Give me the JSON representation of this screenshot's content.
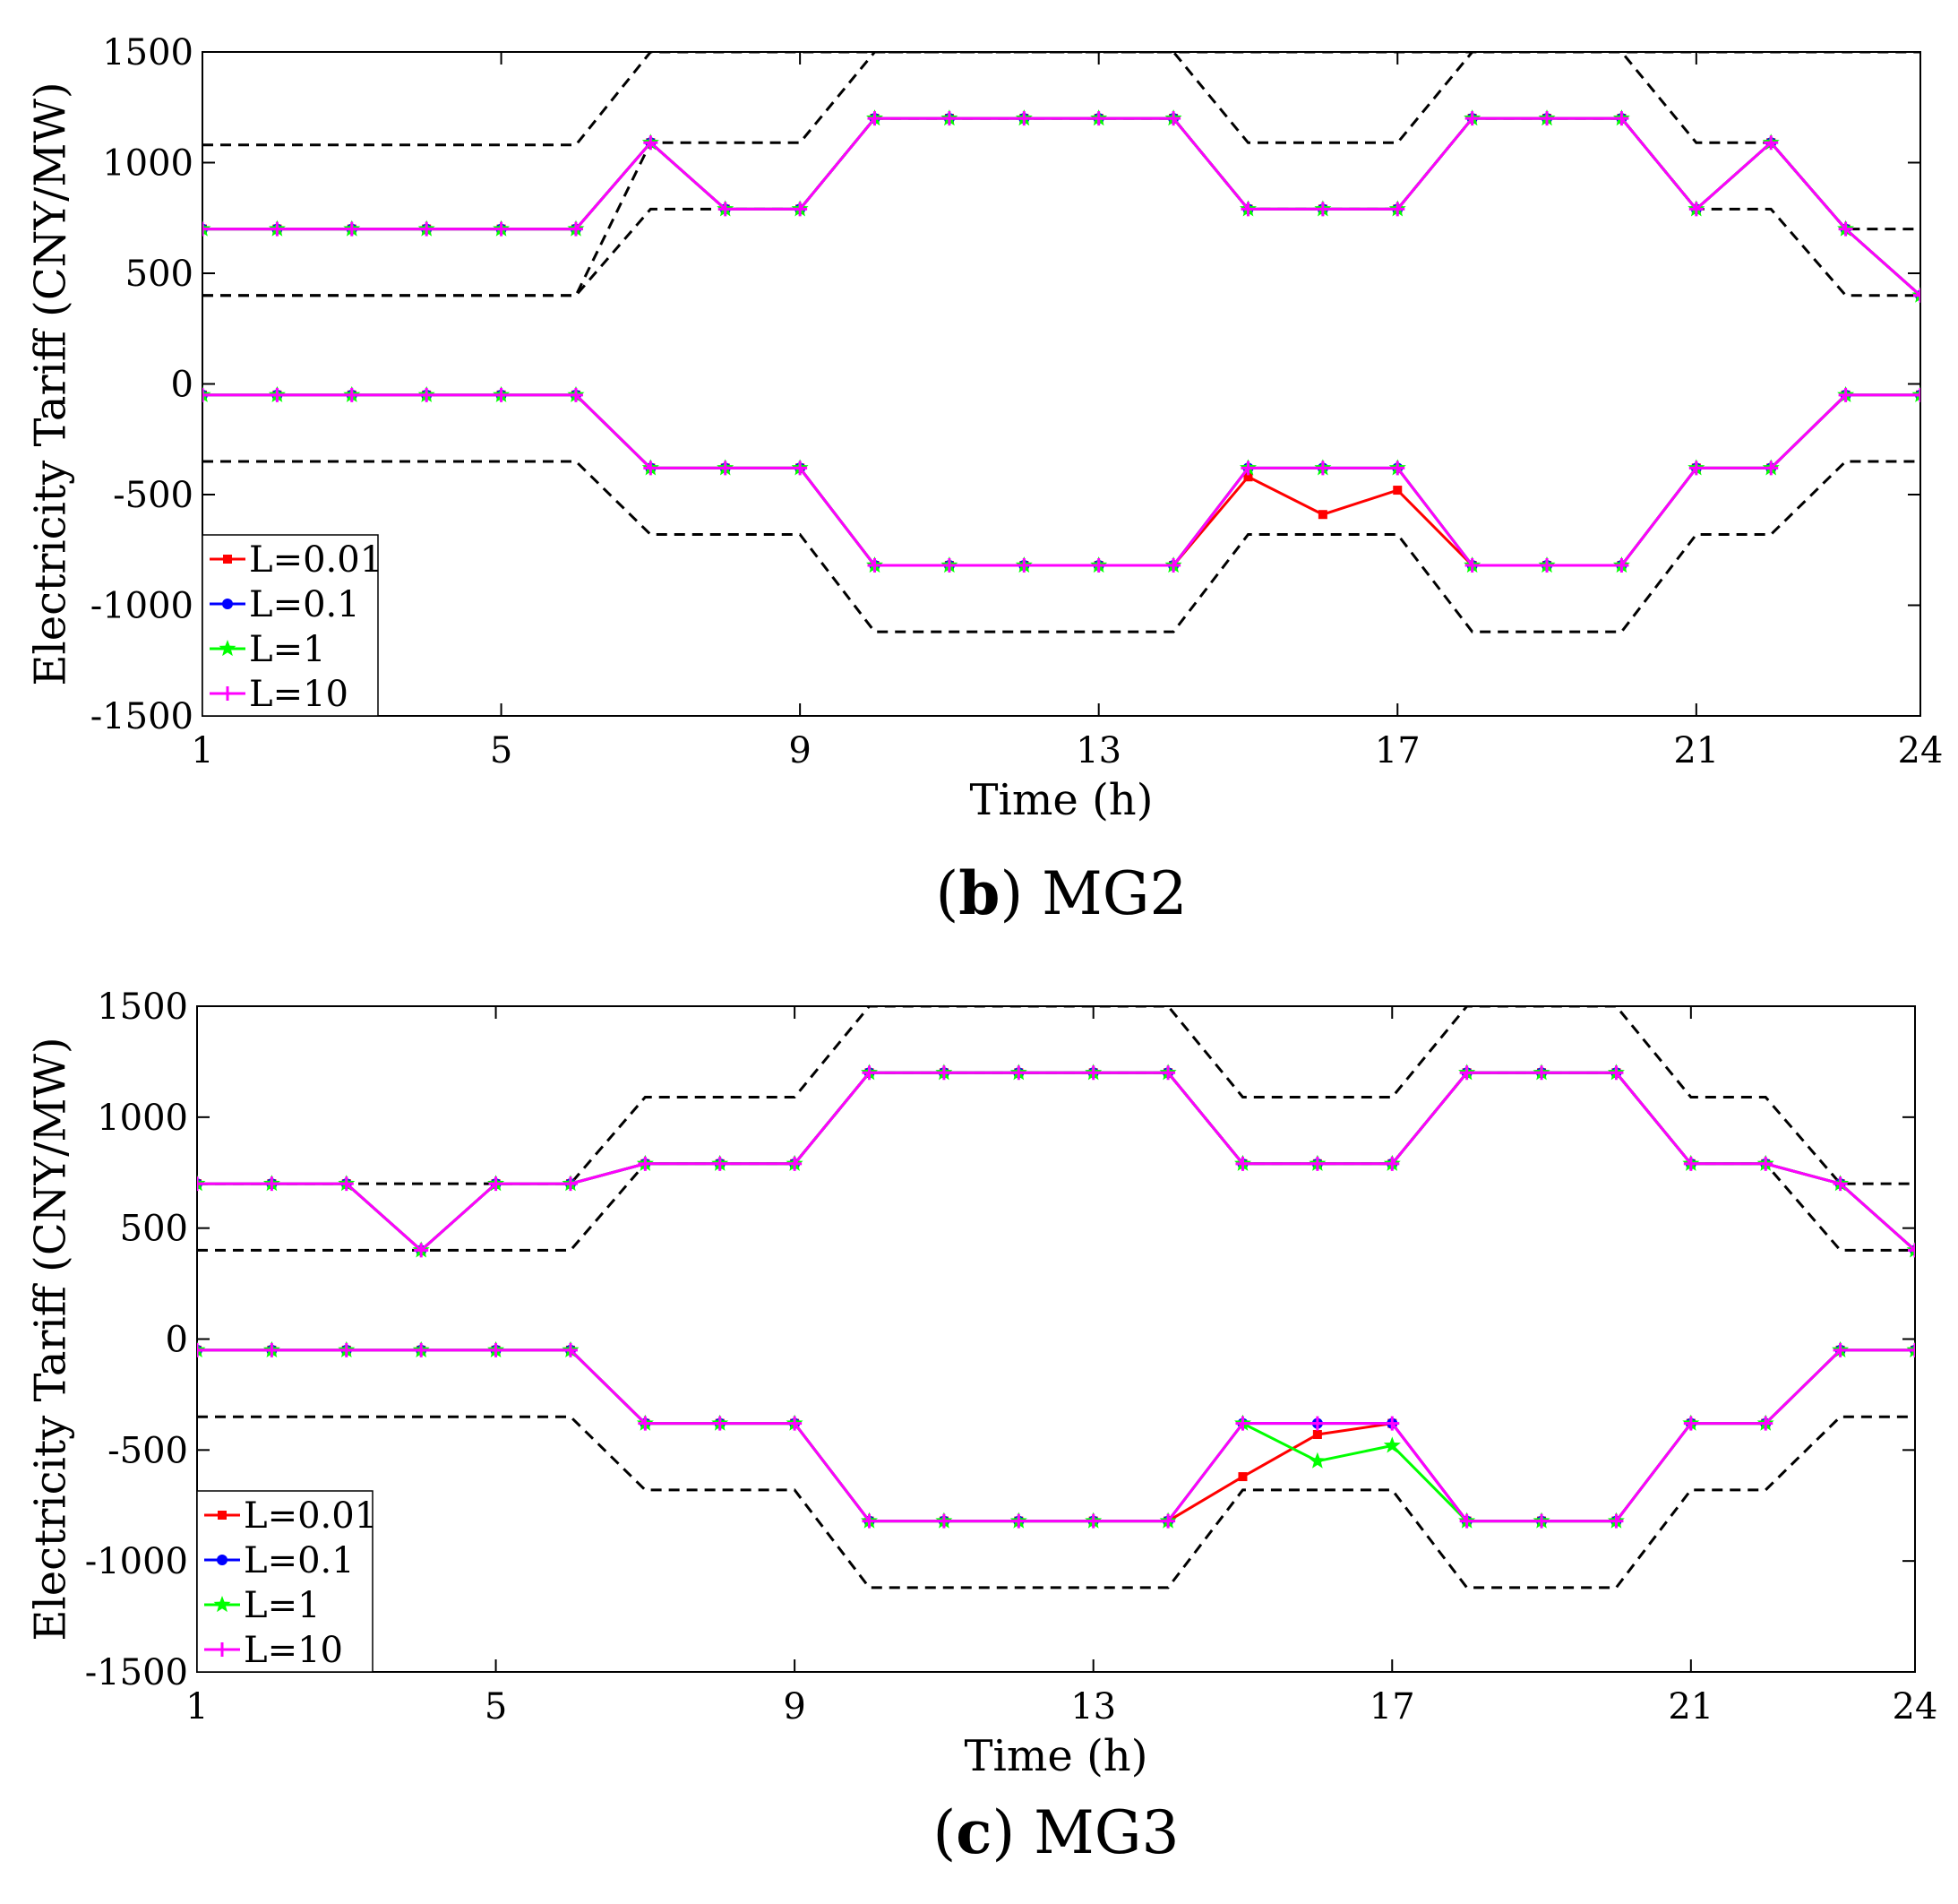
{
  "chart_data": [
    {
      "type": "line",
      "caption": {
        "letter": "b",
        "open": "(",
        "close": ")",
        "text": " MG2"
      },
      "xlabel": "Time (h)",
      "ylabel": "Electricity Tariff (CNY/MW)",
      "xlim": [
        1,
        24
      ],
      "ylim": [
        -1500,
        1500
      ],
      "xticks": [
        1,
        5,
        9,
        13,
        17,
        21,
        24
      ],
      "yticks": [
        1500,
        1000,
        500,
        0,
        -500,
        -1000,
        -1500
      ],
      "legend_position": "bottom-left",
      "x": [
        1,
        2,
        3,
        4,
        5,
        6,
        7,
        8,
        9,
        10,
        11,
        12,
        13,
        14,
        15,
        16,
        17,
        18,
        19,
        20,
        21,
        22,
        23,
        24
      ],
      "bounds": [
        [
          1080,
          1080,
          1080,
          1080,
          1080,
          1080,
          1500,
          1500,
          1500,
          1500,
          1500,
          1500,
          1500,
          1500,
          1500,
          1500,
          1500,
          1500,
          1500,
          1500,
          1500,
          1500,
          1500,
          1500
        ],
        [
          400,
          400,
          400,
          400,
          400,
          400,
          1090,
          1090,
          1090,
          1500,
          1500,
          1500,
          1500,
          1500,
          1090,
          1090,
          1090,
          1500,
          1500,
          1500,
          1090,
          1090,
          700,
          700
        ],
        [
          400,
          400,
          400,
          400,
          400,
          400,
          790,
          790,
          790,
          1200,
          1200,
          1200,
          1200,
          1200,
          790,
          790,
          790,
          1200,
          1200,
          1200,
          790,
          790,
          400,
          400
        ],
        [
          -350,
          -350,
          -350,
          -350,
          -350,
          -350,
          -680,
          -680,
          -680,
          -1120,
          -1120,
          -1120,
          -1120,
          -1120,
          -680,
          -680,
          -680,
          -1120,
          -1120,
          -1120,
          -680,
          -680,
          -350,
          -350
        ]
      ],
      "series": [
        {
          "name": "L=0.01",
          "color": "#ff0000",
          "marker": "square",
          "upper": [
            700,
            700,
            700,
            700,
            700,
            700,
            1090,
            790,
            790,
            1200,
            1200,
            1200,
            1200,
            1200,
            790,
            790,
            790,
            1200,
            1200,
            1200,
            790,
            1090,
            700,
            400
          ],
          "lower": [
            -50,
            -50,
            -50,
            -50,
            -50,
            -50,
            -380,
            -380,
            -380,
            -820,
            -820,
            -820,
            -820,
            -820,
            -420,
            -590,
            -480,
            -820,
            -820,
            -820,
            -380,
            -380,
            -50,
            -50
          ]
        },
        {
          "name": "L=0.1",
          "color": "#0000ff",
          "marker": "circle",
          "upper": [
            700,
            700,
            700,
            700,
            700,
            700,
            1090,
            790,
            790,
            1200,
            1200,
            1200,
            1200,
            1200,
            790,
            790,
            790,
            1200,
            1200,
            1200,
            790,
            1090,
            700,
            400
          ],
          "lower": [
            -50,
            -50,
            -50,
            -50,
            -50,
            -50,
            -380,
            -380,
            -380,
            -820,
            -820,
            -820,
            -820,
            -820,
            -380,
            -380,
            -380,
            -820,
            -820,
            -820,
            -380,
            -380,
            -50,
            -50
          ]
        },
        {
          "name": "L=1",
          "color": "#00ff00",
          "marker": "star",
          "upper": [
            700,
            700,
            700,
            700,
            700,
            700,
            1090,
            790,
            790,
            1200,
            1200,
            1200,
            1200,
            1200,
            790,
            790,
            790,
            1200,
            1200,
            1200,
            790,
            1090,
            700,
            400
          ],
          "lower": [
            -50,
            -50,
            -50,
            -50,
            -50,
            -50,
            -380,
            -380,
            -380,
            -820,
            -820,
            -820,
            -820,
            -820,
            -380,
            -380,
            -380,
            -820,
            -820,
            -820,
            -380,
            -380,
            -50,
            -50
          ]
        },
        {
          "name": "L=10",
          "color": "#ff00ff",
          "marker": "plus",
          "upper": [
            700,
            700,
            700,
            700,
            700,
            700,
            1090,
            790,
            790,
            1200,
            1200,
            1200,
            1200,
            1200,
            790,
            790,
            790,
            1200,
            1200,
            1200,
            790,
            1090,
            700,
            400
          ],
          "lower": [
            -50,
            -50,
            -50,
            -50,
            -50,
            -50,
            -380,
            -380,
            -380,
            -820,
            -820,
            -820,
            -820,
            -820,
            -380,
            -380,
            -380,
            -820,
            -820,
            -820,
            -380,
            -380,
            -50,
            -50
          ]
        }
      ]
    },
    {
      "type": "line",
      "caption": {
        "letter": "c",
        "open": "(",
        "close": ")",
        "text": " MG3"
      },
      "xlabel": "Time (h)",
      "ylabel": "Electricity Tariff (CNY/MW)",
      "xlim": [
        1,
        24
      ],
      "ylim": [
        -1500,
        1500
      ],
      "xticks": [
        1,
        5,
        9,
        13,
        17,
        21,
        24
      ],
      "yticks": [
        1500,
        1000,
        500,
        0,
        -500,
        -1000,
        -1500
      ],
      "legend_position": "bottom-left",
      "x": [
        1,
        2,
        3,
        4,
        5,
        6,
        7,
        8,
        9,
        10,
        11,
        12,
        13,
        14,
        15,
        16,
        17,
        18,
        19,
        20,
        21,
        22,
        23,
        24
      ],
      "bounds": [
        [
          700,
          700,
          700,
          700,
          700,
          700,
          1090,
          1090,
          1090,
          1500,
          1500,
          1500,
          1500,
          1500,
          1090,
          1090,
          1090,
          1500,
          1500,
          1500,
          1090,
          1090,
          700,
          700
        ],
        [
          400,
          400,
          400,
          400,
          400,
          400,
          790,
          790,
          790,
          1200,
          1200,
          1200,
          1200,
          1200,
          790,
          790,
          790,
          1200,
          1200,
          1200,
          790,
          790,
          400,
          400
        ],
        [
          -350,
          -350,
          -350,
          -350,
          -350,
          -350,
          -680,
          -680,
          -680,
          -1120,
          -1120,
          -1120,
          -1120,
          -1120,
          -680,
          -680,
          -680,
          -1120,
          -1120,
          -1120,
          -680,
          -680,
          -350,
          -350
        ]
      ],
      "series": [
        {
          "name": "L=0.01",
          "color": "#ff0000",
          "marker": "square",
          "upper": [
            700,
            700,
            700,
            400,
            700,
            700,
            790,
            790,
            790,
            1200,
            1200,
            1200,
            1200,
            1200,
            790,
            790,
            790,
            1200,
            1200,
            1200,
            790,
            790,
            700,
            400
          ],
          "lower": [
            -50,
            -50,
            -50,
            -50,
            -50,
            -50,
            -380,
            -380,
            -380,
            -820,
            -820,
            -820,
            -820,
            -820,
            -620,
            -430,
            -380,
            -820,
            -820,
            -820,
            -380,
            -380,
            -50,
            -50
          ]
        },
        {
          "name": "L=0.1",
          "color": "#0000ff",
          "marker": "circle",
          "upper": [
            700,
            700,
            700,
            400,
            700,
            700,
            790,
            790,
            790,
            1200,
            1200,
            1200,
            1200,
            1200,
            790,
            790,
            790,
            1200,
            1200,
            1200,
            790,
            790,
            700,
            400
          ],
          "lower": [
            -50,
            -50,
            -50,
            -50,
            -50,
            -50,
            -380,
            -380,
            -380,
            -820,
            -820,
            -820,
            -820,
            -820,
            -380,
            -380,
            -380,
            -820,
            -820,
            -820,
            -380,
            -380,
            -50,
            -50
          ]
        },
        {
          "name": "L=1",
          "color": "#00ff00",
          "marker": "star",
          "upper": [
            700,
            700,
            700,
            400,
            700,
            700,
            790,
            790,
            790,
            1200,
            1200,
            1200,
            1200,
            1200,
            790,
            790,
            790,
            1200,
            1200,
            1200,
            790,
            790,
            700,
            400
          ],
          "lower": [
            -50,
            -50,
            -50,
            -50,
            -50,
            -50,
            -380,
            -380,
            -380,
            -820,
            -820,
            -820,
            -820,
            -820,
            -380,
            -550,
            -480,
            -820,
            -820,
            -820,
            -380,
            -380,
            -50,
            -50
          ]
        },
        {
          "name": "L=10",
          "color": "#ff00ff",
          "marker": "plus",
          "upper": [
            700,
            700,
            700,
            400,
            700,
            700,
            790,
            790,
            790,
            1200,
            1200,
            1200,
            1200,
            1200,
            790,
            790,
            790,
            1200,
            1200,
            1200,
            790,
            790,
            700,
            400
          ],
          "lower": [
            -50,
            -50,
            -50,
            -50,
            -50,
            -50,
            -380,
            -380,
            -380,
            -820,
            -820,
            -820,
            -820,
            -820,
            -380,
            -380,
            -380,
            -820,
            -820,
            -820,
            -380,
            -380,
            -50,
            -50
          ]
        }
      ]
    }
  ]
}
